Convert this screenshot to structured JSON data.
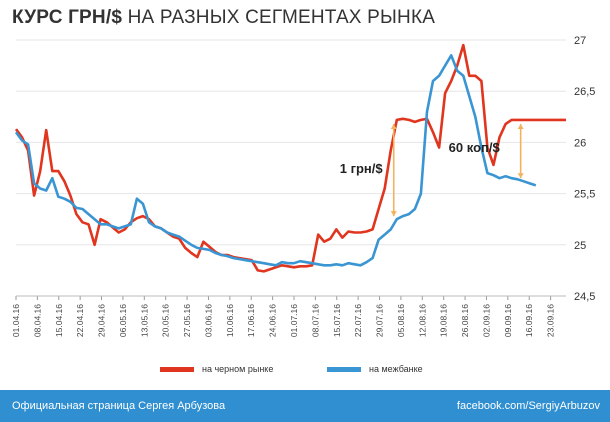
{
  "title": {
    "bold": "КУРС ГРН/$",
    "rest": "НА РАЗНЫХ СЕГМЕНТАХ РЫНКА"
  },
  "colors": {
    "black_market": "#e0351e",
    "interbank": "#3a95d3",
    "annotation": "#f2b25e",
    "footer": "#2f8fd1"
  },
  "footer": {
    "left": "Официальная страница Сергея Арбузова",
    "right": "facebook.com/SergiyArbuzov"
  },
  "chart_data": {
    "type": "line",
    "title": "КУРС ГРН/$ НА РАЗНЫХ СЕГМЕНТАХ РЫНКА",
    "ylim": [
      24.5,
      27
    ],
    "yticks": [
      "24,5",
      "25",
      "25,5",
      "26",
      "26,5",
      "27"
    ],
    "xticks": [
      "01.04.16",
      "08.04.16",
      "15.04.16",
      "22.04.16",
      "29.04.16",
      "06.05.16",
      "13.05.16",
      "20.05.16",
      "27.05.16",
      "03.06.16",
      "10.06.16",
      "17.06.16",
      "24.06.16",
      "01.07.16",
      "08.07.16",
      "15.07.16",
      "22.07.16",
      "29.07.16",
      "05.08.16",
      "12.08.16",
      "19.08.16",
      "26.08.16",
      "02.09.16",
      "09.09.16",
      "16.09.16",
      "23.09.16"
    ],
    "x_range": [
      0,
      182
    ],
    "grid": true,
    "legend_position": "bottom",
    "series": [
      {
        "name": "на черном рынке",
        "color": "#e0351e",
        "x": [
          0,
          2,
          4,
          6,
          8,
          10,
          12,
          14,
          16,
          18,
          20,
          22,
          24,
          26,
          28,
          30,
          32,
          34,
          36,
          38,
          40,
          42,
          44,
          46,
          48,
          50,
          52,
          54,
          56,
          58,
          60,
          62,
          64,
          66,
          68,
          70,
          72,
          74,
          76,
          78,
          80,
          82,
          84,
          86,
          88,
          90,
          92,
          94,
          96,
          98,
          100,
          102,
          104,
          106,
          108,
          110,
          112,
          114,
          116,
          118,
          120,
          122,
          124,
          126,
          128,
          130,
          132,
          134,
          136,
          138,
          140,
          142,
          144,
          146,
          148,
          150,
          152,
          154,
          156,
          158,
          160,
          162,
          164,
          166,
          168,
          170,
          172,
          174,
          176,
          178,
          180,
          182
        ],
        "values": [
          26.13,
          26.05,
          25.92,
          25.48,
          25.72,
          26.12,
          25.72,
          25.72,
          25.62,
          25.48,
          25.3,
          25.22,
          25.2,
          25.0,
          25.25,
          25.22,
          25.17,
          25.12,
          25.15,
          25.22,
          25.26,
          25.28,
          25.25,
          25.18,
          25.16,
          25.12,
          25.08,
          25.06,
          24.97,
          24.92,
          24.88,
          25.03,
          24.98,
          24.93,
          24.9,
          24.9,
          24.88,
          24.87,
          24.86,
          24.85,
          24.75,
          24.74,
          24.76,
          24.78,
          24.8,
          24.79,
          24.78,
          24.79,
          24.79,
          24.8,
          25.1,
          25.03,
          25.06,
          25.15,
          25.07,
          25.13,
          25.12,
          25.12,
          25.13,
          25.15,
          25.35,
          25.55,
          25.92,
          26.22,
          26.23,
          26.22,
          26.2,
          26.22,
          26.23,
          26.1,
          25.95,
          26.48,
          26.6,
          26.75,
          26.95,
          26.65,
          26.65,
          26.6,
          25.95,
          25.78,
          26.05,
          26.18,
          26.22,
          26.22,
          26.22,
          26.22,
          26.22,
          26.22,
          26.22,
          26.22,
          26.22,
          26.22
        ],
        "note": "trace follows line until ~x=166 then flat"
      },
      {
        "name": "на межбанке",
        "color": "#3a95d3",
        "x": [
          0,
          2,
          4,
          6,
          8,
          10,
          12,
          14,
          16,
          18,
          20,
          22,
          24,
          26,
          28,
          30,
          32,
          34,
          36,
          38,
          40,
          42,
          44,
          46,
          48,
          50,
          52,
          54,
          56,
          58,
          60,
          62,
          64,
          66,
          68,
          70,
          72,
          74,
          76,
          78,
          80,
          82,
          84,
          86,
          88,
          90,
          92,
          94,
          96,
          98,
          100,
          102,
          104,
          106,
          108,
          110,
          112,
          114,
          116,
          118,
          120,
          122,
          124,
          126,
          128,
          130,
          132,
          134,
          136,
          138,
          140,
          142,
          144,
          146,
          148,
          150,
          152,
          154,
          156,
          158,
          160,
          162,
          164,
          166,
          168,
          170,
          172
        ],
        "values": [
          26.1,
          26.02,
          25.98,
          25.6,
          25.55,
          25.53,
          25.65,
          25.47,
          25.45,
          25.42,
          25.36,
          25.35,
          25.3,
          25.25,
          25.2,
          25.2,
          25.18,
          25.16,
          25.18,
          25.2,
          25.45,
          25.4,
          25.22,
          25.18,
          25.16,
          25.12,
          25.1,
          25.08,
          25.04,
          25.0,
          24.97,
          24.96,
          24.95,
          24.92,
          24.9,
          24.89,
          24.87,
          24.86,
          24.85,
          24.84,
          24.83,
          24.82,
          24.81,
          24.8,
          24.83,
          24.82,
          24.82,
          24.84,
          24.83,
          24.82,
          24.81,
          24.8,
          24.8,
          24.81,
          24.8,
          24.82,
          24.81,
          24.8,
          24.83,
          24.87,
          25.05,
          25.1,
          25.15,
          25.25,
          25.28,
          25.3,
          25.35,
          25.5,
          26.3,
          26.6,
          26.65,
          26.75,
          26.85,
          26.7,
          26.65,
          26.45,
          26.25,
          25.95,
          25.7,
          25.68,
          25.65,
          25.67,
          25.65,
          25.64,
          25.62,
          25.6,
          25.58
        ],
        "note": "interbank rate"
      }
    ],
    "annotations": [
      {
        "text": "1 грн/$",
        "x_from": 125,
        "from": 25.28,
        "to": 26.18
      },
      {
        "text": "60 коп/$",
        "x_from": 167,
        "from": 25.65,
        "to": 26.18
      }
    ]
  }
}
